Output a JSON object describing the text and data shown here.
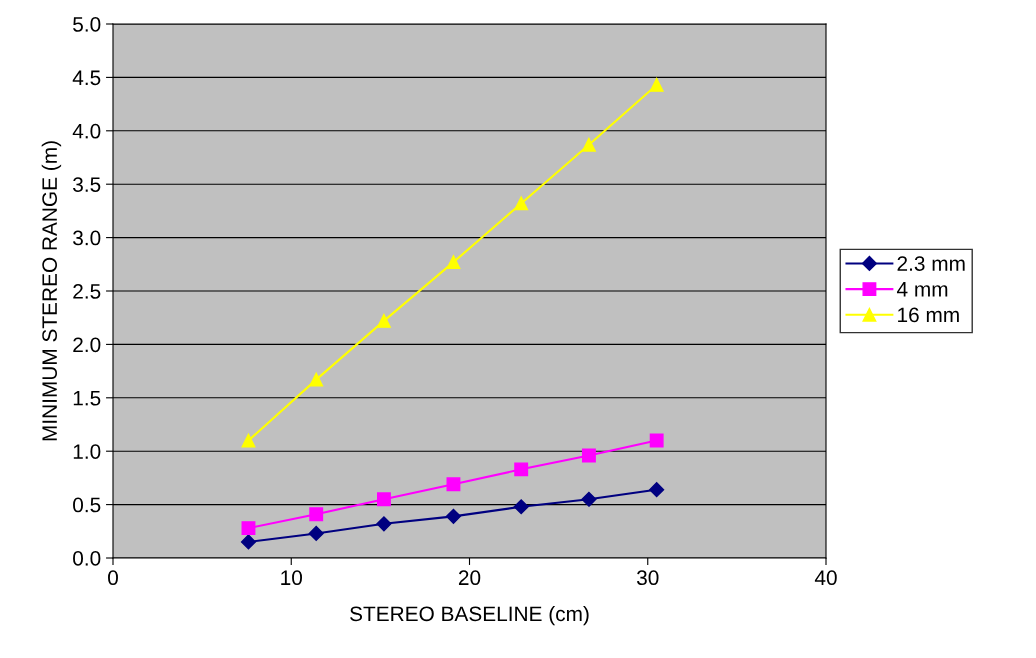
{
  "chart_data": {
    "type": "line",
    "xlabel": "STEREO BASELINE (cm)",
    "ylabel": "MINIMUM STEREO RANGE (m)",
    "x": [
      7.6,
      11.4,
      15.2,
      19.1,
      22.9,
      26.7,
      30.5
    ],
    "series": [
      {
        "name": "2.3 mm",
        "color": "#000080",
        "marker": "diamond",
        "values": [
          0.15,
          0.23,
          0.32,
          0.39,
          0.48,
          0.55,
          0.64
        ]
      },
      {
        "name": "4 mm",
        "color": "#ff00ff",
        "marker": "square",
        "values": [
          0.28,
          0.41,
          0.55,
          0.69,
          0.83,
          0.96,
          1.1
        ]
      },
      {
        "name": "16 mm",
        "color": "#ffff00",
        "marker": "triangle",
        "values": [
          1.1,
          1.67,
          2.22,
          2.77,
          3.32,
          3.87,
          4.43
        ]
      }
    ],
    "xlim": [
      0,
      40
    ],
    "xticks": [
      0,
      10,
      20,
      30,
      40
    ],
    "ylim": [
      0,
      5
    ],
    "yticks": [
      {
        "value": 0,
        "label": "0.0"
      },
      {
        "value": 0.5,
        "label": "0.5"
      },
      {
        "value": 1,
        "label": "1.0"
      },
      {
        "value": 1.5,
        "label": "1.5"
      },
      {
        "value": 2,
        "label": "2.0"
      },
      {
        "value": 2.5,
        "label": "2.5"
      },
      {
        "value": 3,
        "label": "3.0"
      },
      {
        "value": 3.5,
        "label": "3.5"
      },
      {
        "value": 4,
        "label": "4.0"
      },
      {
        "value": 4.5,
        "label": "4.5"
      },
      {
        "value": 5,
        "label": "5.0"
      }
    ],
    "grid": "y",
    "legend": "right",
    "line_style": "solid"
  }
}
